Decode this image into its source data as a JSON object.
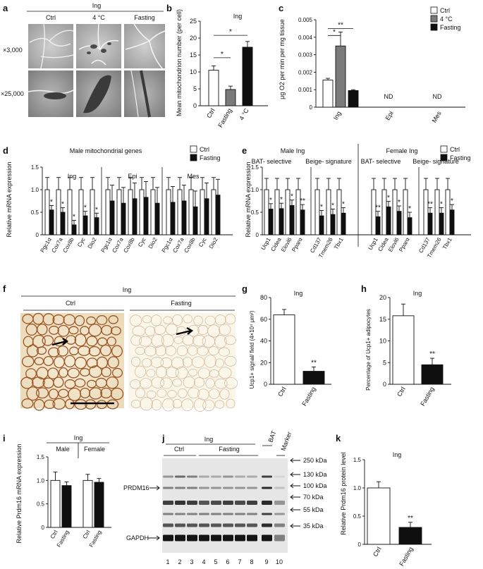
{
  "panel_letters": [
    "a",
    "b",
    "c",
    "d",
    "e",
    "f",
    "g",
    "h",
    "i",
    "j",
    "k"
  ],
  "colors": {
    "ctrl": "#ffffff",
    "cold": "#7a7a7a",
    "fasting": "#0f0f0f",
    "stain_brown": "#8a4a1e"
  },
  "panel_a": {
    "group": "Ing",
    "columns": [
      "Ctrl",
      "4 °C",
      "Fasting"
    ],
    "rows": [
      "×3,000",
      "×25,000"
    ]
  },
  "legend_main": {
    "ctrl": "Ctrl",
    "cold": "4 °C",
    "fasting": "Fasting"
  },
  "legend_two": {
    "ctrl": "Ctrl",
    "fasting": "Fasting"
  },
  "stars": {
    "one": "*",
    "two": "**",
    "nd": "ND"
  },
  "panel_d": {
    "title": "Male mitochondrial genes"
  },
  "panel_e": {
    "male_title": "Male Ing",
    "female_title": "Female Ing",
    "bat": "BAT- selective",
    "beige": "Beige- signature"
  },
  "panel_f": {
    "group": "Ing",
    "left": "Ctrl",
    "right": "Fasting"
  },
  "panel_i": {
    "group": "Ing",
    "male": "Male",
    "female": "Female"
  },
  "panel_j": {
    "group": "Ing",
    "ctrl": "Ctrl",
    "fasting": "Fasting",
    "bat": "BAT",
    "marker": "Marker",
    "prdm16": "PRDM16",
    "gapdh": "GAPDH",
    "kda": [
      "250 kDa",
      "130 kDa",
      "100 kDa",
      "70 kDa",
      "55 kDa",
      "35 kDa"
    ],
    "lanes": [
      "1",
      "2",
      "3",
      "4",
      "5",
      "6",
      "7",
      "8",
      "9",
      "10"
    ]
  },
  "chart_data": [
    {
      "id": "b",
      "type": "bar",
      "title": "Ing",
      "categories": [
        "Ctrl",
        "Fasting",
        "4 °C"
      ],
      "values": [
        10.5,
        4.8,
        17.3
      ],
      "errors": [
        1.3,
        1.0,
        1.7
      ],
      "ylabel": "Mean mitochondrion number (per cell)",
      "ylim": [
        0,
        25
      ],
      "yticks": [
        0,
        5,
        10,
        15,
        20,
        25
      ],
      "annotations": [
        "*",
        "*"
      ]
    },
    {
      "id": "c",
      "type": "bar",
      "categories": [
        "Ing",
        "Epi",
        "Mes"
      ],
      "series": [
        {
          "name": "Ctrl",
          "values": [
            0.00155,
            null,
            null
          ],
          "errors": [
            0.0001,
            null,
            null
          ]
        },
        {
          "name": "4 °C",
          "values": [
            0.0035,
            null,
            null
          ],
          "errors": [
            0.0008,
            null,
            null
          ]
        },
        {
          "name": "Fasting",
          "values": [
            0.00095,
            null,
            null
          ],
          "errors": [
            5e-05,
            null,
            null
          ]
        }
      ],
      "ylabel": "μg O2 per min per mg tissue",
      "ylim": [
        0,
        0.005
      ],
      "yticks": [
        "0",
        "0.001",
        "0.002",
        "0.003",
        "0.004",
        "0.005"
      ],
      "annotations": [
        "*",
        "**",
        "ND",
        "ND"
      ]
    },
    {
      "id": "d",
      "type": "bar",
      "title": "Male mitochondrial genes",
      "groups": [
        "Ing",
        "Epi",
        "Mes"
      ],
      "categories": [
        "Pgc1α",
        "Cox7a",
        "Cox8b",
        "Cyc",
        "Dio2"
      ],
      "series": [
        {
          "name": "Ctrl",
          "values": [
            [
              1,
              1,
              1,
              1,
              1
            ],
            [
              1,
              1,
              1,
              1,
              1
            ],
            [
              1,
              1,
              1,
              1,
              1
            ]
          ]
        },
        {
          "name": "Fasting",
          "values": [
            [
              0.55,
              0.5,
              0.22,
              0.42,
              0.38
            ],
            [
              0.75,
              0.7,
              0.8,
              0.83,
              0.7
            ],
            [
              0.72,
              0.75,
              0.62,
              0.8,
              0.88
            ]
          ]
        }
      ],
      "ylabel": "Relative mRNA expression",
      "ylim": [
        0,
        1.5
      ],
      "yticks": [
        "0",
        "0.5",
        "1.0",
        "1.5"
      ],
      "annotations": [
        "*",
        "*",
        "*",
        "*",
        "*"
      ]
    },
    {
      "id": "e",
      "type": "bar",
      "groups": [
        "Male Ing",
        "Female Ing"
      ],
      "subgroups": [
        "BAT-selective",
        "Beige-signature"
      ],
      "categories": [
        "Ucp1",
        "Cidea",
        "Elovl6",
        "Pparα",
        "Cd137",
        "Tmem26",
        "Tbx1"
      ],
      "series": [
        {
          "name": "Ctrl",
          "values": [
            [
              1,
              1,
              1,
              1,
              1,
              1,
              1
            ],
            [
              1,
              1,
              1,
              1,
              1,
              1,
              1
            ]
          ]
        },
        {
          "name": "Fasting",
          "values": [
            [
              0.57,
              0.58,
              0.65,
              0.55,
              0.42,
              0.45,
              0.48
            ],
            [
              0.4,
              0.62,
              0.52,
              0.38,
              0.48,
              0.48,
              0.55
            ]
          ]
        }
      ],
      "ylabel": "Relative mRNA expression",
      "ylim": [
        0,
        1.5
      ],
      "yticks": [
        "0",
        "0.5",
        "1.0",
        "1.5"
      ]
    },
    {
      "id": "g",
      "type": "bar",
      "title": "Ing",
      "categories": [
        "Ctrl",
        "Fasting"
      ],
      "values": [
        64,
        12
      ],
      "errors": [
        5,
        4
      ],
      "ylabel": "Ucp1+ signal/ field (4×10⁴ μm²)",
      "ylim": [
        0,
        80
      ],
      "yticks": [
        0,
        20,
        40,
        60,
        80
      ],
      "annotations": [
        "**"
      ]
    },
    {
      "id": "h",
      "type": "bar",
      "title": "Ing",
      "categories": [
        "Ctrl",
        "Fasting"
      ],
      "values": [
        15.8,
        4.5
      ],
      "errors": [
        2.7,
        1.5
      ],
      "ylabel": "Percentage of Ucp1+ adipocytes",
      "ylim": [
        0,
        20
      ],
      "yticks": [
        0,
        5,
        10,
        15,
        20
      ],
      "annotations": [
        "**"
      ]
    },
    {
      "id": "i",
      "type": "bar",
      "groups": [
        "Male",
        "Female"
      ],
      "categories": [
        "Ctrl",
        "Fasting"
      ],
      "series": [
        {
          "name": "Male",
          "values": [
            1.0,
            0.89
          ],
          "errors": [
            0.18,
            0.08
          ]
        },
        {
          "name": "Female",
          "values": [
            1.0,
            0.96
          ],
          "errors": [
            0.13,
            0.08
          ]
        }
      ],
      "ylabel": "Relative Prdm16 mRNA expression",
      "ylim": [
        0,
        1.5
      ],
      "yticks": [
        "0",
        "0.5",
        "1.0",
        "1.5"
      ]
    },
    {
      "id": "k",
      "type": "bar",
      "title": "Ing",
      "categories": [
        "Ctrl",
        "Fasting"
      ],
      "values": [
        1.0,
        0.3
      ],
      "errors": [
        0.11,
        0.09
      ],
      "ylabel": "Relative Prdm16 protein level",
      "ylim": [
        0,
        1.5
      ],
      "yticks": [
        "0",
        "0.5",
        "1.0",
        "1.5"
      ],
      "annotations": [
        "**"
      ]
    }
  ]
}
